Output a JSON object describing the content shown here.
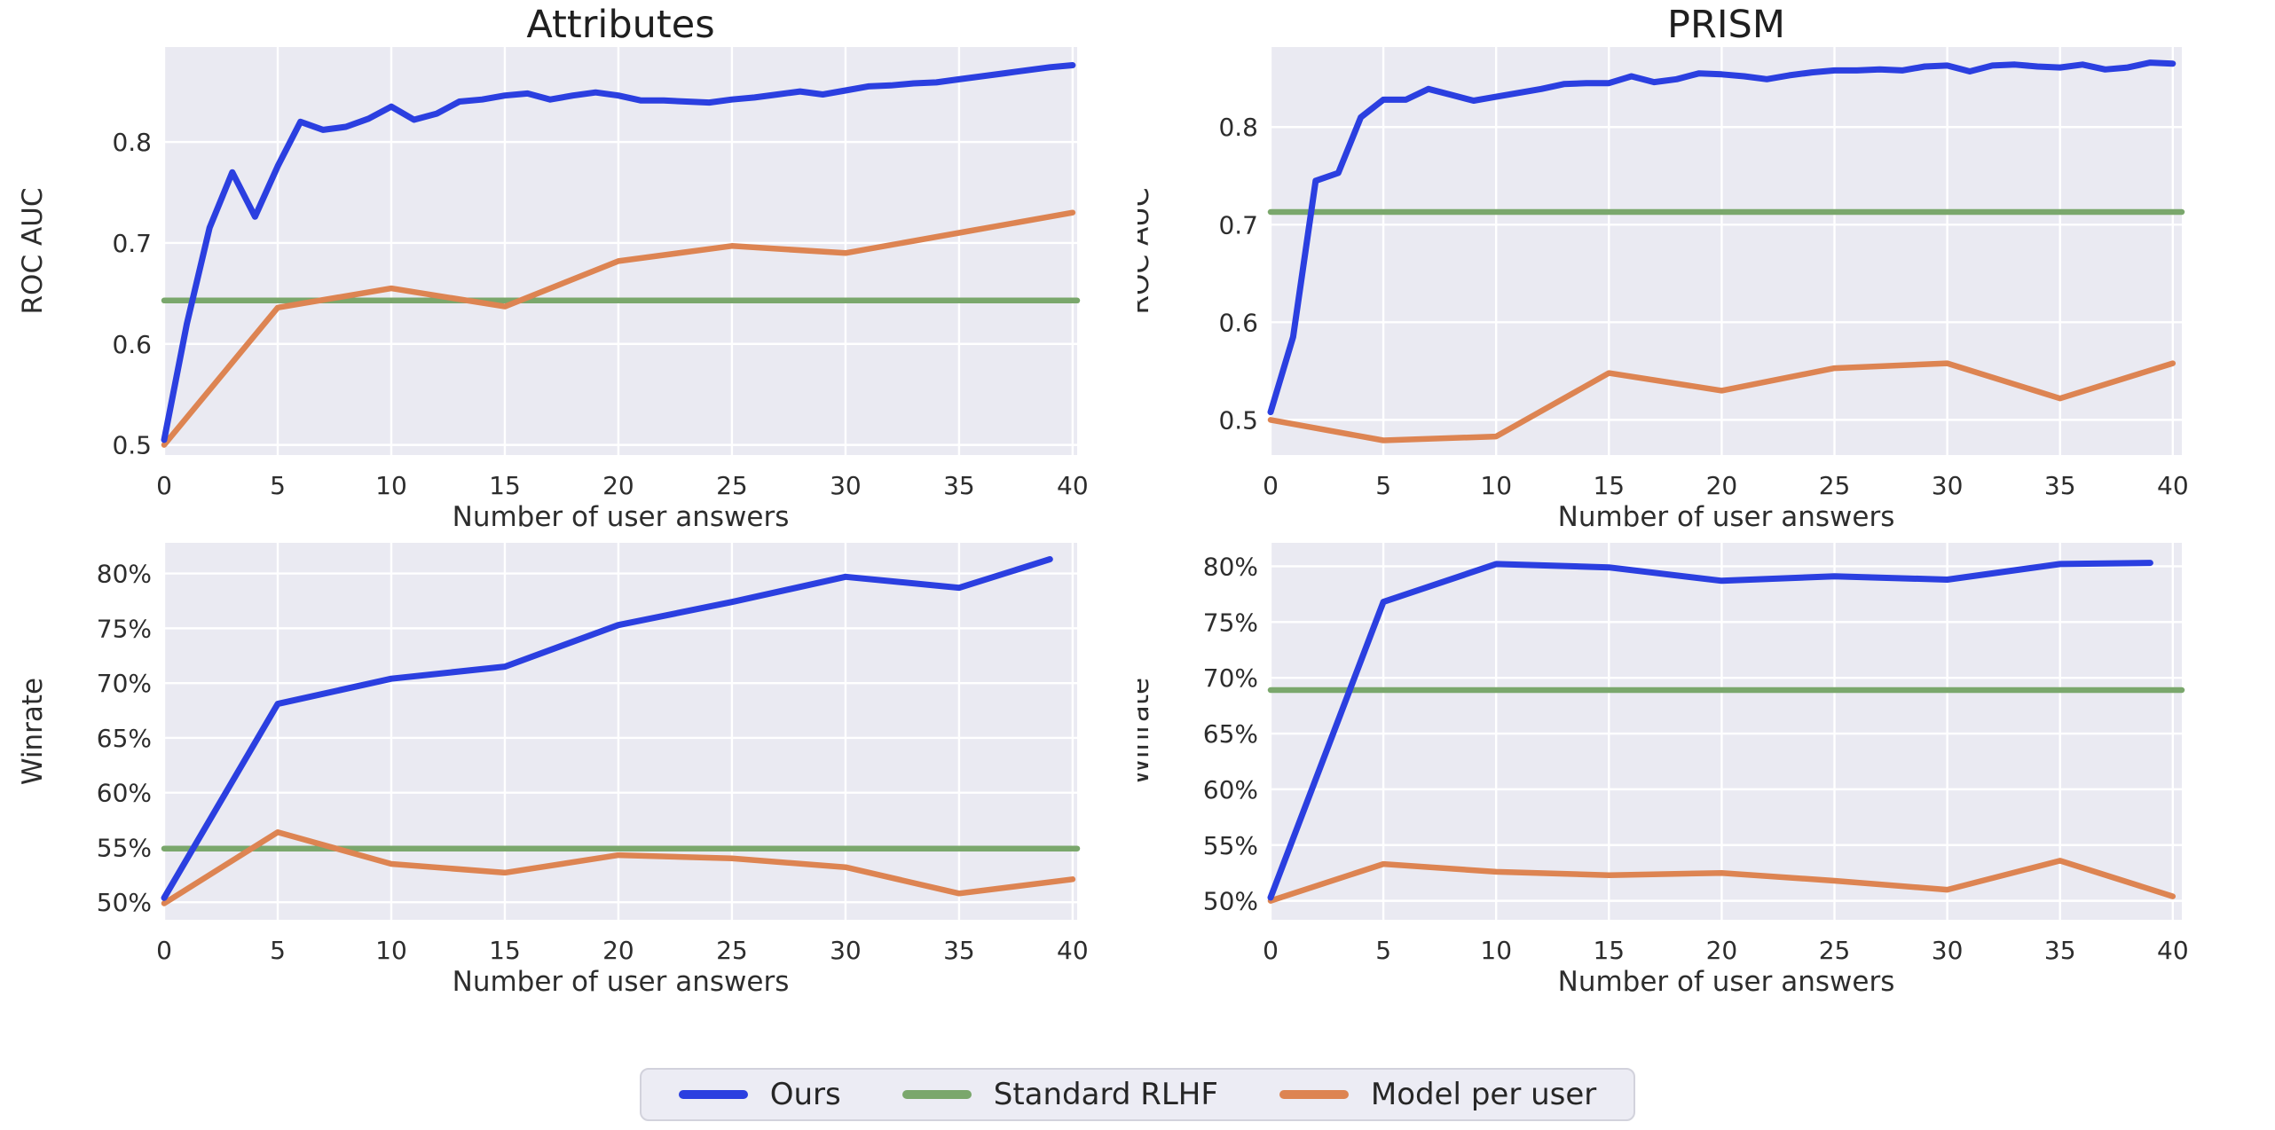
{
  "titles": {
    "left": "Attributes",
    "right": "PRISM"
  },
  "axis_labels": {
    "x": "Number of user answers",
    "y_top": "ROC AUC",
    "y_bottom": "Winrate"
  },
  "colors": {
    "ours": "#2b3fe0",
    "standard_rlhf": "#7aa76c",
    "model_per_user": "#dd8452",
    "plot_bg": "#eaeaf2",
    "grid": "#ffffff",
    "text": "#2d2d2d",
    "title": "#1f1f1f",
    "legend_bg": "#ececf4",
    "legend_border": "#d2d2dc"
  },
  "legend": [
    {
      "label": "Ours",
      "key": "ours"
    },
    {
      "label": "Standard RLHF",
      "key": "standard_rlhf"
    },
    {
      "label": "Model per user",
      "key": "model_per_user"
    }
  ],
  "chart_data": [
    {
      "id": "attributes_roc_auc",
      "type": "line",
      "title": "Attributes",
      "ylabel": "ROC AUC",
      "xlabel": "Number of user answers",
      "xlim": [
        0,
        40.2
      ],
      "ylim": [
        0.49,
        0.894
      ],
      "xticks": [
        0,
        5,
        10,
        15,
        20,
        25,
        30,
        35,
        40
      ],
      "yticks": {
        "values": [
          0.5,
          0.6,
          0.7,
          0.8
        ],
        "labels": [
          "0.5",
          "0.6",
          "0.7",
          "0.8"
        ]
      },
      "series": [
        {
          "name": "Standard RLHF",
          "key": "standard_rlhf",
          "hline": 0.643
        },
        {
          "name": "Model per user",
          "key": "model_per_user",
          "x": [
            0,
            5,
            10,
            15,
            20,
            25,
            30,
            35,
            40
          ],
          "y": [
            0.5,
            0.636,
            0.655,
            0.637,
            0.682,
            0.697,
            0.69,
            0.71,
            0.73
          ]
        },
        {
          "name": "Ours",
          "key": "ours",
          "x": [
            0,
            1,
            2,
            3,
            4,
            5,
            6,
            7,
            8,
            9,
            10,
            11,
            12,
            13,
            14,
            15,
            16,
            17,
            18,
            19,
            20,
            21,
            22,
            23,
            24,
            25,
            26,
            27,
            28,
            29,
            30,
            31,
            32,
            33,
            34,
            35,
            36,
            37,
            38,
            39,
            40
          ],
          "y": [
            0.505,
            0.62,
            0.715,
            0.77,
            0.726,
            0.776,
            0.82,
            0.812,
            0.815,
            0.823,
            0.835,
            0.822,
            0.828,
            0.84,
            0.842,
            0.846,
            0.848,
            0.842,
            0.846,
            0.849,
            0.846,
            0.841,
            0.841,
            0.84,
            0.839,
            0.842,
            0.844,
            0.847,
            0.85,
            0.847,
            0.851,
            0.855,
            0.856,
            0.858,
            0.859,
            0.862,
            0.865,
            0.868,
            0.871,
            0.874,
            0.876
          ]
        }
      ]
    },
    {
      "id": "prism_roc_auc",
      "type": "line",
      "title": "PRISM",
      "ylabel": "ROC AUC",
      "xlabel": "Number of user answers",
      "xlim": [
        0,
        40.4
      ],
      "ylim": [
        0.464,
        0.882
      ],
      "xticks": [
        0,
        5,
        10,
        15,
        20,
        25,
        30,
        35,
        40
      ],
      "yticks": {
        "values": [
          0.5,
          0.6,
          0.7,
          0.8
        ],
        "labels": [
          "0.5",
          "0.6",
          "0.7",
          "0.8"
        ]
      },
      "series": [
        {
          "name": "Standard RLHF",
          "key": "standard_rlhf",
          "hline": 0.713
        },
        {
          "name": "Model per user",
          "key": "model_per_user",
          "x": [
            0,
            5,
            10,
            15,
            20,
            25,
            30,
            35,
            40
          ],
          "y": [
            0.5,
            0.479,
            0.483,
            0.548,
            0.53,
            0.553,
            0.558,
            0.522,
            0.558
          ]
        },
        {
          "name": "Ours",
          "key": "ours",
          "x": [
            0,
            1,
            2,
            3,
            4,
            5,
            6,
            7,
            8,
            9,
            10,
            11,
            12,
            13,
            14,
            15,
            16,
            17,
            18,
            19,
            20,
            21,
            22,
            23,
            24,
            25,
            26,
            27,
            28,
            29,
            30,
            31,
            32,
            33,
            34,
            35,
            36,
            37,
            38,
            39,
            40
          ],
          "y": [
            0.508,
            0.585,
            0.745,
            0.753,
            0.81,
            0.828,
            0.828,
            0.839,
            0.833,
            0.827,
            0.831,
            0.835,
            0.839,
            0.844,
            0.845,
            0.845,
            0.852,
            0.846,
            0.849,
            0.855,
            0.854,
            0.852,
            0.849,
            0.853,
            0.856,
            0.858,
            0.858,
            0.859,
            0.858,
            0.862,
            0.863,
            0.857,
            0.863,
            0.864,
            0.862,
            0.861,
            0.864,
            0.859,
            0.861,
            0.866,
            0.865
          ]
        }
      ]
    },
    {
      "id": "attributes_winrate",
      "type": "line",
      "title": null,
      "ylabel": "Winrate",
      "xlabel": "Number of user answers",
      "xlim": [
        0,
        40.2
      ],
      "ylim": [
        48.4,
        82.8
      ],
      "xticks": [
        0,
        5,
        10,
        15,
        20,
        25,
        30,
        35,
        40
      ],
      "yticks": {
        "values": [
          50,
          55,
          60,
          65,
          70,
          75,
          80
        ],
        "labels": [
          "50%",
          "55%",
          "60%",
          "65%",
          "70%",
          "75%",
          "80%"
        ]
      },
      "series": [
        {
          "name": "Standard RLHF",
          "key": "standard_rlhf",
          "hline": 54.9
        },
        {
          "name": "Model per user",
          "key": "model_per_user",
          "x": [
            0,
            5,
            10,
            15,
            20,
            25,
            30,
            35,
            40
          ],
          "y": [
            49.9,
            56.4,
            53.5,
            52.7,
            54.3,
            54.0,
            53.2,
            50.8,
            52.1
          ]
        },
        {
          "name": "Ours",
          "key": "ours",
          "x": [
            0,
            5,
            10,
            15,
            20,
            25,
            30,
            35,
            39
          ],
          "y": [
            50.4,
            68.1,
            70.4,
            71.5,
            75.3,
            77.4,
            79.7,
            78.7,
            81.3
          ]
        }
      ]
    },
    {
      "id": "prism_winrate",
      "type": "line",
      "title": null,
      "ylabel": "Winrate",
      "xlabel": "Number of user answers",
      "xlim": [
        0,
        40.4
      ],
      "ylim": [
        48.3,
        82.1
      ],
      "xticks": [
        0,
        5,
        10,
        15,
        20,
        25,
        30,
        35,
        40
      ],
      "yticks": {
        "values": [
          50,
          55,
          60,
          65,
          70,
          75,
          80
        ],
        "labels": [
          "50%",
          "55%",
          "60%",
          "65%",
          "70%",
          "75%",
          "80%"
        ]
      },
      "series": [
        {
          "name": "Standard RLHF",
          "key": "standard_rlhf",
          "hline": 68.9
        },
        {
          "name": "Model per user",
          "key": "model_per_user",
          "x": [
            0,
            5,
            10,
            15,
            20,
            25,
            30,
            35,
            40
          ],
          "y": [
            50.0,
            53.3,
            52.6,
            52.3,
            52.5,
            51.8,
            51.0,
            53.6,
            50.4
          ]
        },
        {
          "name": "Ours",
          "key": "ours",
          "x": [
            0,
            5,
            10,
            15,
            20,
            25,
            30,
            35,
            39
          ],
          "y": [
            50.3,
            76.8,
            80.2,
            79.9,
            78.7,
            79.1,
            78.8,
            80.2,
            80.3
          ]
        }
      ]
    }
  ]
}
